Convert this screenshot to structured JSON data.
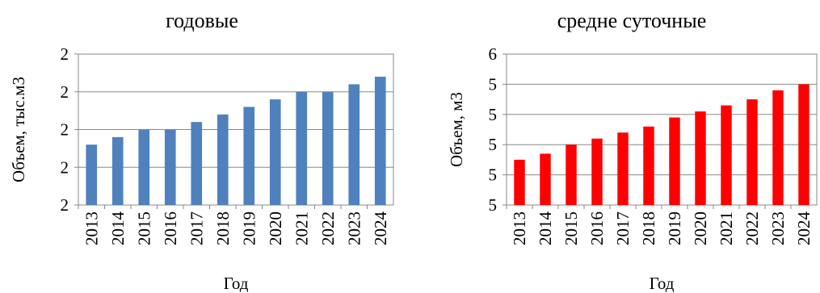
{
  "chart_data": [
    {
      "type": "bar",
      "title": "годовые",
      "x_label": "Год",
      "y_label": "Объем, тыс.м3",
      "color": "#4f81bd",
      "categories": [
        "2013",
        "2014",
        "2015",
        "2016",
        "2017",
        "2018",
        "2019",
        "2020",
        "2021",
        "2022",
        "2023",
        "2024"
      ],
      "values": [
        1.76,
        1.78,
        1.8,
        1.8,
        1.82,
        1.84,
        1.86,
        1.88,
        1.9,
        1.9,
        1.92,
        1.94
      ],
      "ylim": [
        1.6,
        2.0
      ],
      "yticks": [
        {
          "value": 1.6,
          "label": "2"
        },
        {
          "value": 1.7,
          "label": "2"
        },
        {
          "value": 1.8,
          "label": "2"
        },
        {
          "value": 1.9,
          "label": "2"
        },
        {
          "value": 2.0,
          "label": "2"
        }
      ],
      "grid": true
    },
    {
      "type": "bar",
      "title": "средне суточные",
      "x_label": "Год",
      "y_label": "Объем, м3",
      "color": "#ff0000",
      "categories": [
        "2013",
        "2014",
        "2015",
        "2016",
        "2017",
        "2018",
        "2019",
        "2020",
        "2021",
        "2022",
        "2023",
        "2024"
      ],
      "values": [
        5.15,
        5.17,
        5.2,
        5.22,
        5.24,
        5.26,
        5.29,
        5.31,
        5.33,
        5.35,
        5.38,
        5.4
      ],
      "ylim": [
        5.0,
        5.5
      ],
      "yticks": [
        {
          "value": 5.0,
          "label": "5"
        },
        {
          "value": 5.1,
          "label": "5"
        },
        {
          "value": 5.2,
          "label": "5"
        },
        {
          "value": 5.3,
          "label": "5"
        },
        {
          "value": 5.4,
          "label": "5"
        },
        {
          "value": 5.5,
          "label": "6"
        }
      ],
      "grid": true
    }
  ]
}
